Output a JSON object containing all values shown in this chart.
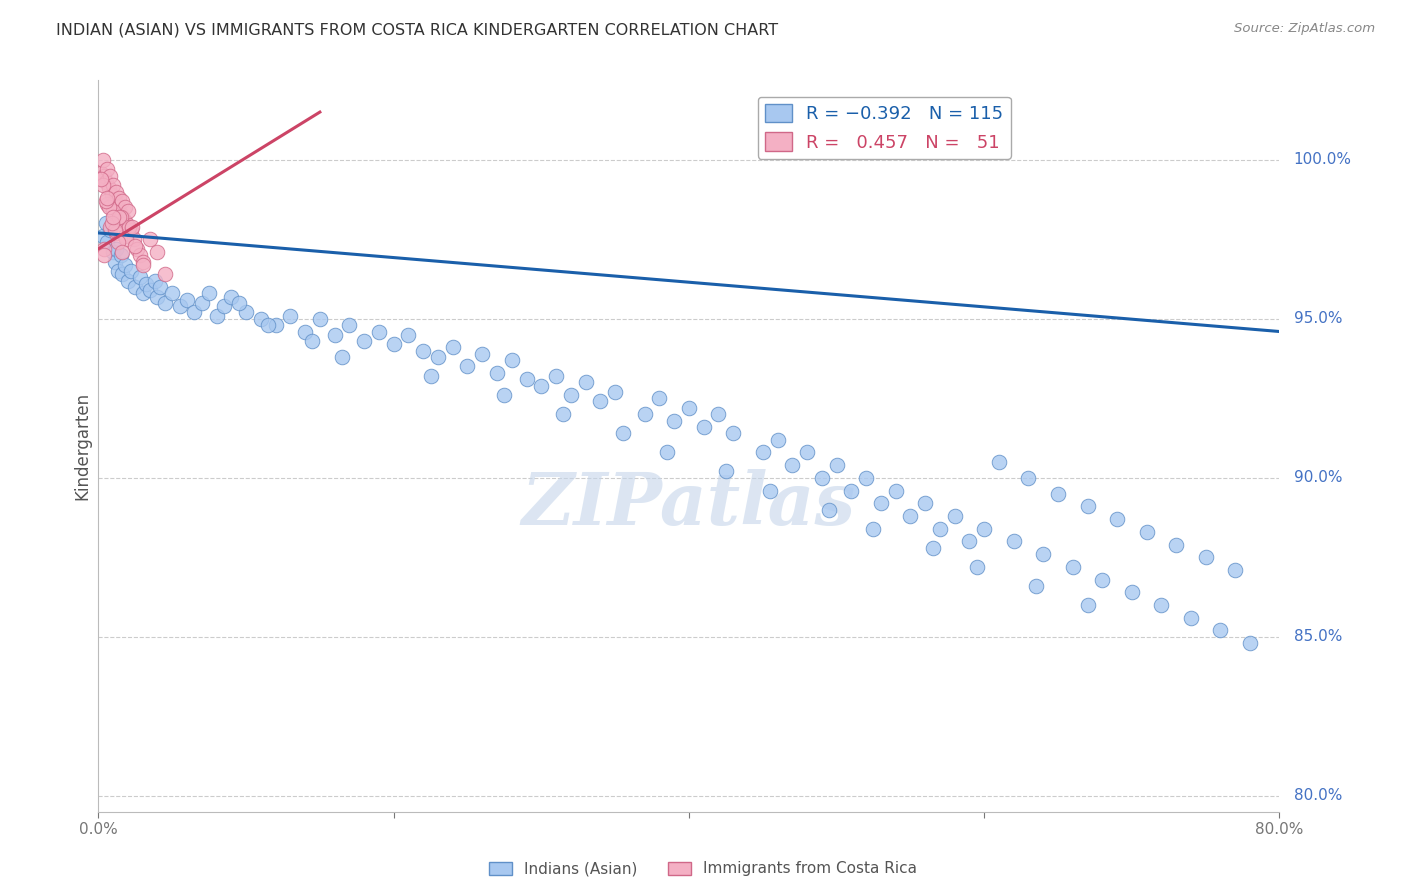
{
  "title": "INDIAN (ASIAN) VS IMMIGRANTS FROM COSTA RICA KINDERGARTEN CORRELATION CHART",
  "source": "Source: ZipAtlas.com",
  "ylabel": "Kindergarten",
  "right_ticks": [
    80.0,
    85.0,
    90.0,
    95.0,
    100.0
  ],
  "xlim": [
    0.0,
    80.0
  ],
  "ylim": [
    79.5,
    102.5
  ],
  "blue_face": "#A8C8F0",
  "blue_edge": "#6090C8",
  "pink_face": "#F4B0C4",
  "pink_edge": "#D06888",
  "blue_line": "#1A5FAA",
  "pink_line": "#CC4466",
  "title_color": "#333333",
  "source_color": "#888888",
  "ylabel_color": "#555555",
  "right_tick_color": "#4472C4",
  "xtick_color": "#777777",
  "grid_color": "#CCCCCC",
  "blue_trend_x0": 0.0,
  "blue_trend_y0": 97.7,
  "blue_trend_x1": 80.0,
  "blue_trend_y1": 94.6,
  "pink_trend_x0": 0.0,
  "pink_trend_y0": 97.2,
  "pink_trend_x1": 15.0,
  "pink_trend_y1": 101.5,
  "blue_x": [
    0.3,
    0.5,
    0.6,
    0.8,
    1.0,
    1.1,
    1.2,
    1.3,
    1.5,
    1.6,
    1.8,
    2.0,
    2.2,
    2.5,
    2.8,
    3.0,
    3.2,
    3.5,
    3.8,
    4.0,
    4.2,
    4.5,
    5.0,
    5.5,
    6.0,
    6.5,
    7.0,
    7.5,
    8.0,
    8.5,
    9.0,
    10.0,
    11.0,
    12.0,
    13.0,
    14.0,
    15.0,
    16.0,
    17.0,
    18.0,
    19.0,
    20.0,
    21.0,
    22.0,
    23.0,
    24.0,
    25.0,
    26.0,
    27.0,
    28.0,
    29.0,
    30.0,
    31.0,
    32.0,
    33.0,
    34.0,
    35.0,
    37.0,
    38.0,
    39.0,
    40.0,
    41.0,
    42.0,
    43.0,
    45.0,
    47.0,
    49.0,
    51.0,
    53.0,
    55.0,
    57.0,
    59.0,
    61.0,
    63.0,
    65.0,
    67.0,
    69.0,
    71.0,
    73.0,
    75.0,
    77.0,
    46.0,
    48.0,
    50.0,
    52.0,
    54.0,
    56.0,
    58.0,
    60.0,
    62.0,
    64.0,
    66.0,
    68.0,
    70.0,
    72.0,
    74.0,
    76.0,
    78.0,
    9.5,
    11.5,
    14.5,
    16.5,
    22.5,
    27.5,
    31.5,
    35.5,
    38.5,
    42.5,
    45.5,
    49.5,
    52.5,
    56.5,
    59.5,
    63.5,
    67.0
  ],
  "blue_y": [
    97.6,
    98.0,
    97.4,
    97.8,
    97.1,
    96.8,
    97.2,
    96.5,
    97.0,
    96.4,
    96.7,
    96.2,
    96.5,
    96.0,
    96.3,
    95.8,
    96.1,
    95.9,
    96.2,
    95.7,
    96.0,
    95.5,
    95.8,
    95.4,
    95.6,
    95.2,
    95.5,
    95.8,
    95.1,
    95.4,
    95.7,
    95.2,
    95.0,
    94.8,
    95.1,
    94.6,
    95.0,
    94.5,
    94.8,
    94.3,
    94.6,
    94.2,
    94.5,
    94.0,
    93.8,
    94.1,
    93.5,
    93.9,
    93.3,
    93.7,
    93.1,
    92.9,
    93.2,
    92.6,
    93.0,
    92.4,
    92.7,
    92.0,
    92.5,
    91.8,
    92.2,
    91.6,
    92.0,
    91.4,
    90.8,
    90.4,
    90.0,
    89.6,
    89.2,
    88.8,
    88.4,
    88.0,
    90.5,
    90.0,
    89.5,
    89.1,
    88.7,
    88.3,
    87.9,
    87.5,
    87.1,
    91.2,
    90.8,
    90.4,
    90.0,
    89.6,
    89.2,
    88.8,
    88.4,
    88.0,
    87.6,
    87.2,
    86.8,
    86.4,
    86.0,
    85.6,
    85.2,
    84.8,
    95.5,
    94.8,
    94.3,
    93.8,
    93.2,
    92.6,
    92.0,
    91.4,
    90.8,
    90.2,
    89.6,
    89.0,
    88.4,
    87.8,
    87.2,
    86.6,
    86.0
  ],
  "pink_x": [
    0.2,
    0.3,
    0.4,
    0.5,
    0.6,
    0.7,
    0.8,
    0.9,
    1.0,
    1.1,
    1.2,
    1.3,
    1.4,
    1.5,
    1.6,
    1.7,
    1.8,
    1.9,
    2.0,
    2.2,
    2.4,
    2.6,
    2.8,
    3.0,
    3.5,
    4.0,
    0.4,
    0.6,
    0.8,
    1.0,
    1.2,
    1.5,
    1.8,
    2.1,
    0.3,
    0.7,
    1.1,
    1.4,
    1.9,
    2.3,
    0.5,
    0.9,
    1.3,
    2.5,
    0.2,
    0.6,
    1.0,
    3.0,
    4.5,
    0.4,
    1.6
  ],
  "pink_y": [
    99.6,
    100.0,
    99.5,
    99.3,
    99.7,
    99.1,
    99.5,
    98.9,
    99.2,
    98.7,
    99.0,
    98.5,
    98.8,
    98.3,
    98.7,
    98.1,
    98.5,
    98.0,
    98.4,
    97.8,
    97.5,
    97.2,
    97.0,
    96.8,
    97.5,
    97.1,
    97.2,
    98.6,
    97.9,
    98.4,
    97.7,
    98.2,
    97.6,
    97.9,
    99.2,
    98.5,
    97.8,
    98.2,
    97.5,
    97.9,
    98.7,
    98.0,
    97.4,
    97.3,
    99.4,
    98.8,
    98.2,
    96.7,
    96.4,
    97.0,
    97.1
  ]
}
